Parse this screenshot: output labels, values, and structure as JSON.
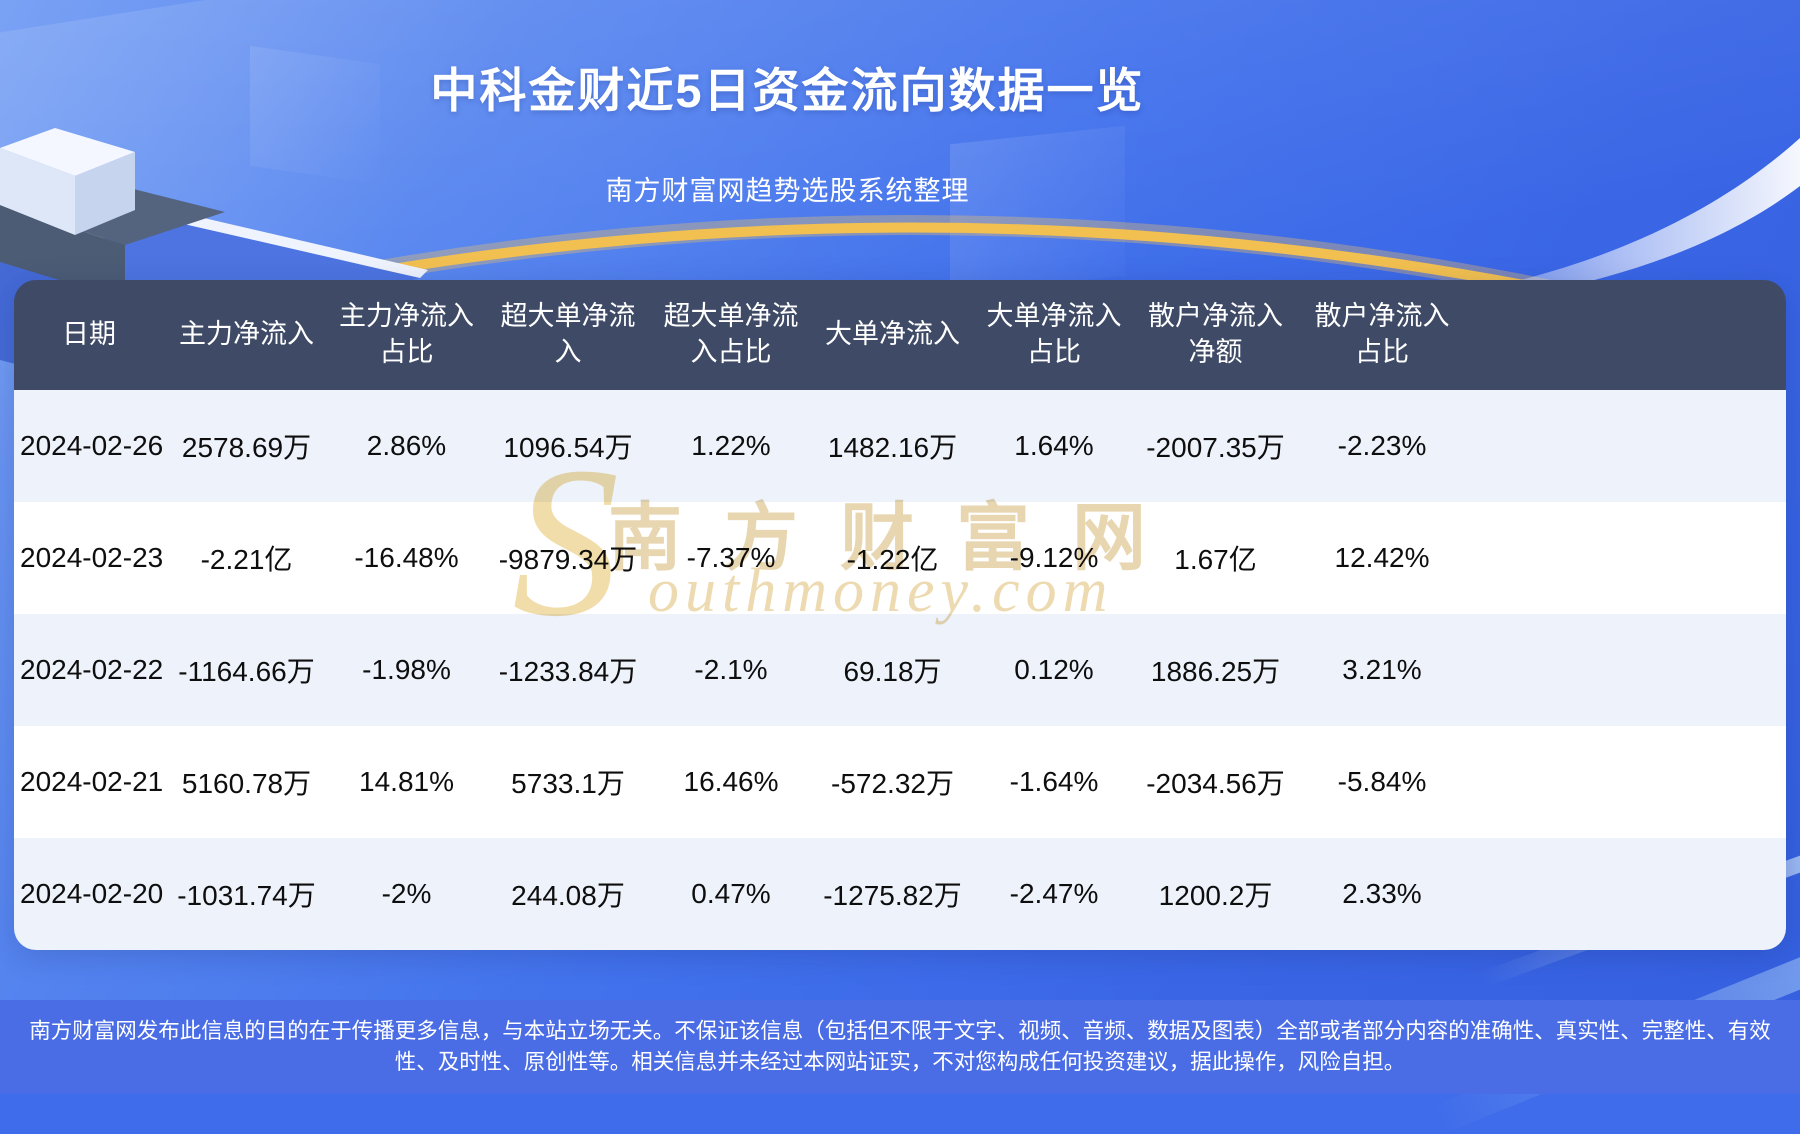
{
  "page": {
    "title": "中科金财近5日资金流向数据一览",
    "subtitle": "南方财富网趋势选股系统整理"
  },
  "watermark": {
    "initial": "S",
    "cn": "南方财富网",
    "en": "outhmoney.com"
  },
  "chart_data": {
    "type": "table",
    "title": "中科金财近5日资金流向数据一览",
    "subtitle": "南方财富网趋势选股系统整理",
    "columns": [
      "日期",
      "主力净流入",
      "主力净流入占比",
      "超大单净流入",
      "超大单净流入入占比",
      "大单净流入",
      "大单净流入占比",
      "散户净流入净额",
      "散户净流入占比"
    ],
    "column_labels": [
      "日期",
      "主力净流入",
      "主力净流入占比",
      "超大单净流入",
      "超大单净流入占比",
      "大单净流入",
      "大单净流入占比",
      "散户净流入净额",
      "散户净流入占比"
    ],
    "rows": [
      [
        "2024-02-26",
        "2578.69万",
        "2.86%",
        "1096.54万",
        "1.22%",
        "1482.16万",
        "1.64%",
        "-2007.35万",
        "-2.23%"
      ],
      [
        "2024-02-23",
        "-2.21亿",
        "-16.48%",
        "-9879.34万",
        "-7.37%",
        "-1.22亿",
        "-9.12%",
        "1.67亿",
        "12.42%"
      ],
      [
        "2024-02-22",
        "-1164.66万",
        "-1.98%",
        "-1233.84万",
        "-2.1%",
        "69.18万",
        "0.12%",
        "1886.25万",
        "3.21%"
      ],
      [
        "2024-02-21",
        "5160.78万",
        "14.81%",
        "5733.1万",
        "16.46%",
        "-572.32万",
        "-1.64%",
        "-2034.56万",
        "-5.84%"
      ],
      [
        "2024-02-20",
        "-1031.74万",
        "-2%",
        "244.08万",
        "0.47%",
        "-1275.82万",
        "-2.47%",
        "1200.2万",
        "2.33%"
      ]
    ]
  },
  "footer": {
    "disclaimer": "南方财富网发布此信息的目的在于传播更多信息，与本站立场无关。不保证该信息（包括但不限于文字、视频、音频、数据及图表）全部或者部分内容的准确性、真实性、完整性、有效性、及时性、原创性等。相关信息并未经过本网站证实，不对您构成任何投资建议，据此操作，风险自担。"
  },
  "colors": {
    "page_blue": "#3f6cea",
    "table_header_bg": "#3e4a66",
    "row_odd": "#edf2fb",
    "row_even": "#ffffff",
    "footer_bg": "#4a6de6",
    "accent_gold": "#f3c35e",
    "watermark_tan": "#e6d2a8"
  }
}
